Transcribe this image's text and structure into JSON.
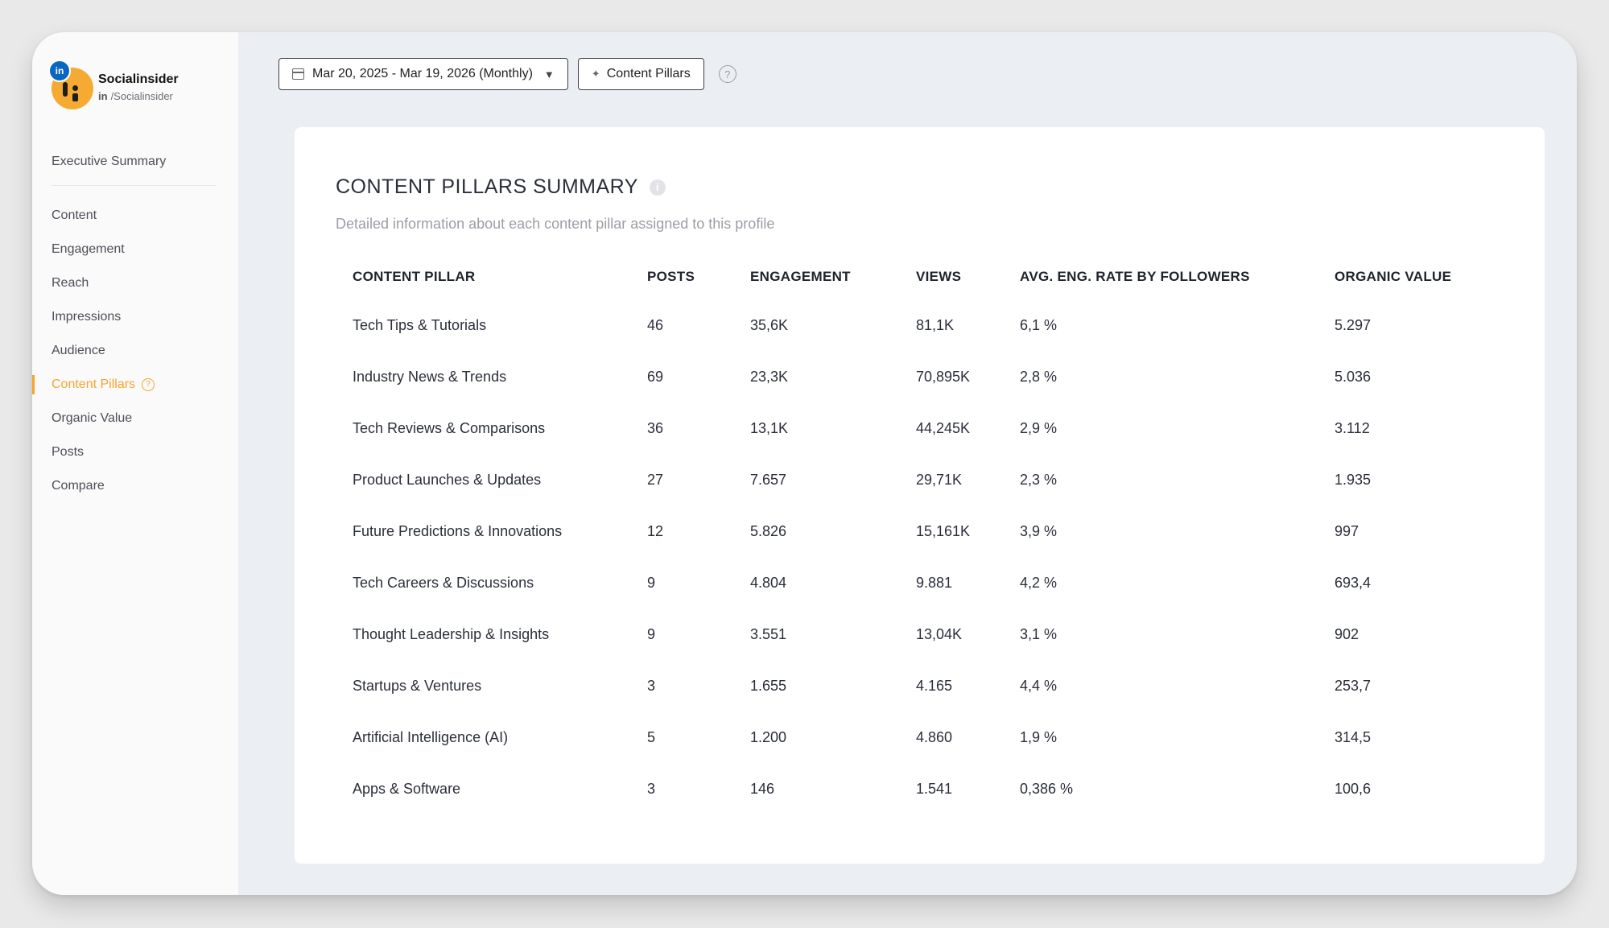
{
  "profile": {
    "name": "Socialinsider",
    "network_badge": "in",
    "handle_prefix": "in",
    "handle": "/Socialinsider"
  },
  "nav": {
    "executive_summary": "Executive Summary",
    "items": [
      {
        "label": "Content"
      },
      {
        "label": "Engagement"
      },
      {
        "label": "Reach"
      },
      {
        "label": "Impressions"
      },
      {
        "label": "Audience"
      },
      {
        "label": "Content Pillars",
        "active": true
      },
      {
        "label": "Organic Value"
      },
      {
        "label": "Posts"
      },
      {
        "label": "Compare"
      }
    ],
    "help_glyph": "?"
  },
  "toolbar": {
    "date_range": "Mar 20, 2025 - Mar 19, 2026 (Monthly)",
    "content_pillars_button": "Content Pillars",
    "help_glyph": "?"
  },
  "card": {
    "title": "CONTENT PILLARS SUMMARY",
    "info_glyph": "i",
    "subtitle": "Detailed information about each content pillar assigned to this profile"
  },
  "table": {
    "headers": [
      "CONTENT PILLAR",
      "POSTS",
      "ENGAGEMENT",
      "VIEWS",
      "AVG. ENG. RATE BY FOLLOWERS",
      "ORGANIC VALUE"
    ],
    "rows": [
      [
        "Tech Tips & Tutorials",
        "46",
        "35,6K",
        "81,1K",
        "6,1 %",
        "5.297"
      ],
      [
        "Industry News & Trends",
        "69",
        "23,3K",
        "70,895K",
        "2,8 %",
        "5.036"
      ],
      [
        "Tech Reviews & Comparisons",
        "36",
        "13,1K",
        "44,245K",
        "2,9 %",
        "3.112"
      ],
      [
        "Product Launches & Updates",
        "27",
        "7.657",
        "29,71K",
        "2,3 %",
        "1.935"
      ],
      [
        "Future Predictions & Innovations",
        "12",
        "5.826",
        "15,161K",
        "3,9 %",
        "997"
      ],
      [
        "Tech Careers & Discussions",
        "9",
        "4.804",
        "9.881",
        "4,2 %",
        "693,4"
      ],
      [
        "Thought Leadership & Insights",
        "9",
        "3.551",
        "13,04K",
        "3,1 %",
        "902"
      ],
      [
        "Startups & Ventures",
        "3",
        "1.655",
        "4.165",
        "4,4 %",
        "253,7"
      ],
      [
        "Artificial Intelligence (AI)",
        "5",
        "1.200",
        "4.860",
        "1,9 %",
        "314,5"
      ],
      [
        "Apps & Software",
        "3",
        "146",
        "1.541",
        "0,386 %",
        "100,6"
      ]
    ]
  },
  "icons": {
    "calendar": "calendar-icon",
    "dropdown": "chevron-down-icon",
    "sparkle": "sparkle-icon",
    "help": "question-circle-icon",
    "info": "info-circle-icon"
  },
  "colors": {
    "accent": "#f3a52f",
    "linkedin": "#0a66c2",
    "avatar": "#f5aa33"
  }
}
